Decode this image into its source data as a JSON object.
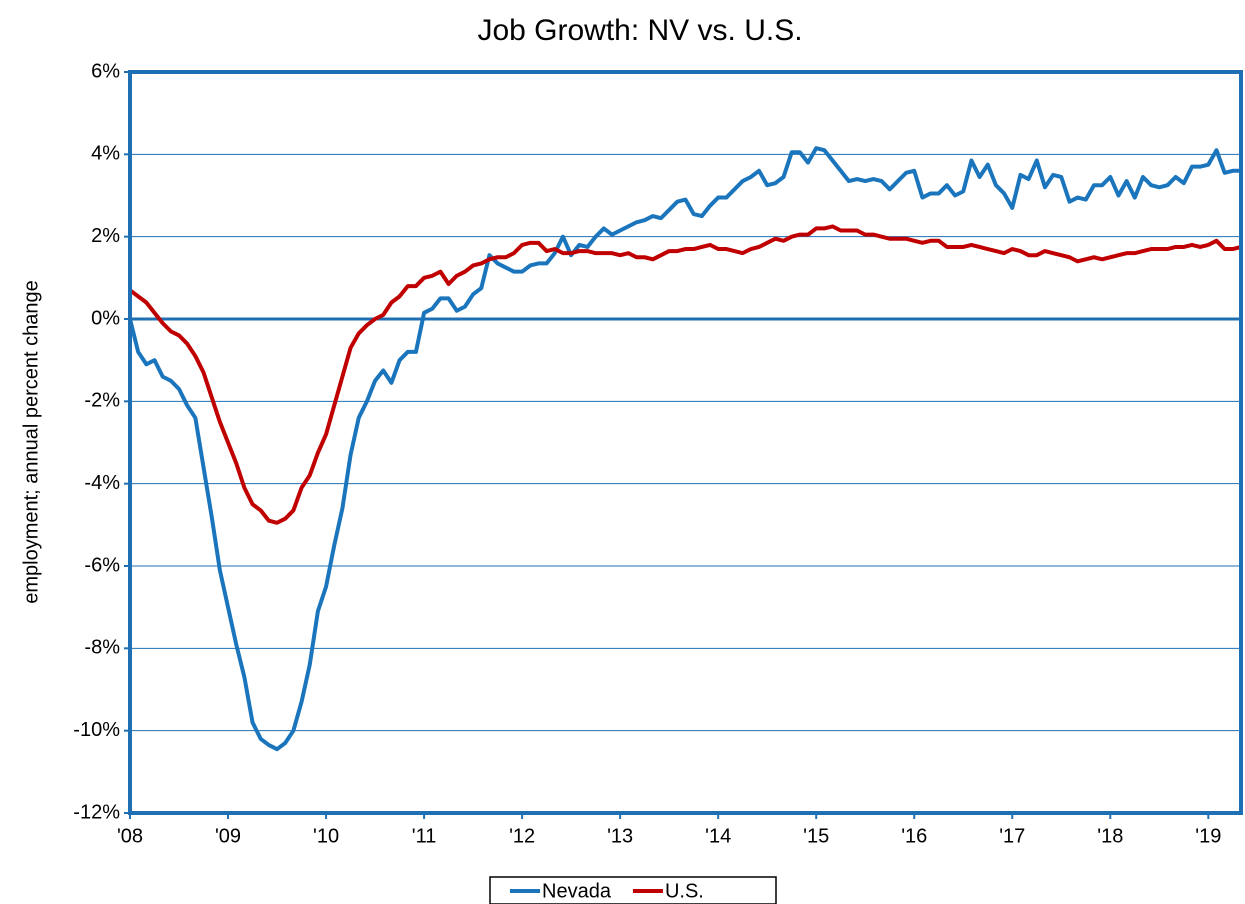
{
  "chart_data": {
    "type": "line",
    "title": "Job Growth:  NV vs. U.S.",
    "y_label": "employment; annual percent change",
    "categories": [
      "'08",
      null,
      null,
      null,
      null,
      null,
      null,
      null,
      null,
      null,
      null,
      null,
      "'09",
      null,
      null,
      null,
      null,
      null,
      null,
      null,
      null,
      null,
      null,
      null,
      "'10",
      null,
      null,
      null,
      null,
      null,
      null,
      null,
      null,
      null,
      null,
      null,
      "'11",
      null,
      null,
      null,
      null,
      null,
      null,
      null,
      null,
      null,
      null,
      null,
      "'12",
      null,
      null,
      null,
      null,
      null,
      null,
      null,
      null,
      null,
      null,
      null,
      "'13",
      null,
      null,
      null,
      null,
      null,
      null,
      null,
      null,
      null,
      null,
      null,
      "'14",
      null,
      null,
      null,
      null,
      null,
      null,
      null,
      null,
      null,
      null,
      null,
      "'15",
      null,
      null,
      null,
      null,
      null,
      null,
      null,
      null,
      null,
      null,
      null,
      "'16",
      null,
      null,
      null,
      null,
      null,
      null,
      null,
      null,
      null,
      null,
      null,
      "'17",
      null,
      null,
      null,
      null,
      null,
      null,
      null,
      null,
      null,
      null,
      null,
      "'18",
      null,
      null,
      null,
      null,
      null,
      null,
      null,
      null,
      null,
      null,
      null,
      "'19",
      null,
      null,
      null,
      null
    ],
    "series": [
      {
        "name": "Nevada",
        "color": "#1a75bc",
        "values": [
          0.0,
          -0.8,
          -1.1,
          -1.0,
          -1.4,
          -1.5,
          -1.7,
          -2.1,
          -2.4,
          -3.6,
          -4.8,
          -6.1,
          -7.0,
          -7.9,
          -8.7,
          -9.8,
          -10.2,
          -10.35,
          -10.45,
          -10.3,
          -10.0,
          -9.3,
          -8.4,
          -7.1,
          -6.5,
          -5.5,
          -4.6,
          -3.3,
          -2.4,
          -2.0,
          -1.5,
          -1.25,
          -1.55,
          -1.0,
          -0.8,
          -0.8,
          0.15,
          0.25,
          0.5,
          0.5,
          0.2,
          0.3,
          0.6,
          0.75,
          1.55,
          1.35,
          1.25,
          1.15,
          1.15,
          1.3,
          1.35,
          1.35,
          1.6,
          2.0,
          1.55,
          1.8,
          1.75,
          2.0,
          2.2,
          2.05,
          2.15,
          2.25,
          2.35,
          2.4,
          2.5,
          2.45,
          2.65,
          2.85,
          2.9,
          2.55,
          2.5,
          2.75,
          2.95,
          2.95,
          3.15,
          3.35,
          3.45,
          3.6,
          3.25,
          3.3,
          3.45,
          4.05,
          4.05,
          3.8,
          4.15,
          4.1,
          3.85,
          3.6,
          3.35,
          3.4,
          3.35,
          3.4,
          3.35,
          3.15,
          3.35,
          3.55,
          3.6,
          2.95,
          3.05,
          3.05,
          3.25,
          3.0,
          3.1,
          3.85,
          3.45,
          3.75,
          3.25,
          3.05,
          2.7,
          3.5,
          3.4,
          3.85,
          3.2,
          3.5,
          3.45,
          2.85,
          2.95,
          2.9,
          3.25,
          3.25,
          3.45,
          3.0,
          3.35,
          2.95,
          3.45,
          3.25,
          3.2,
          3.25,
          3.45,
          3.3,
          3.7,
          3.7,
          3.75,
          4.1,
          3.55,
          3.6,
          3.6
        ]
      },
      {
        "name": "U.S.",
        "color": "#c00000",
        "values": [
          0.7,
          0.55,
          0.4,
          0.15,
          -0.1,
          -0.3,
          -0.4,
          -0.6,
          -0.9,
          -1.3,
          -1.9,
          -2.5,
          -3.0,
          -3.5,
          -4.1,
          -4.5,
          -4.65,
          -4.9,
          -4.95,
          -4.85,
          -4.65,
          -4.1,
          -3.8,
          -3.25,
          -2.8,
          -2.1,
          -1.4,
          -0.7,
          -0.35,
          -0.15,
          0.0,
          0.1,
          0.4,
          0.55,
          0.8,
          0.8,
          1.0,
          1.05,
          1.15,
          0.85,
          1.05,
          1.15,
          1.3,
          1.35,
          1.45,
          1.5,
          1.5,
          1.6,
          1.8,
          1.85,
          1.85,
          1.65,
          1.7,
          1.6,
          1.6,
          1.65,
          1.65,
          1.6,
          1.6,
          1.6,
          1.55,
          1.6,
          1.5,
          1.5,
          1.45,
          1.55,
          1.65,
          1.65,
          1.7,
          1.7,
          1.75,
          1.8,
          1.7,
          1.7,
          1.65,
          1.6,
          1.7,
          1.75,
          1.85,
          1.95,
          1.9,
          2.0,
          2.05,
          2.05,
          2.2,
          2.2,
          2.25,
          2.15,
          2.15,
          2.15,
          2.05,
          2.05,
          2.0,
          1.95,
          1.95,
          1.95,
          1.9,
          1.85,
          1.9,
          1.9,
          1.75,
          1.75,
          1.75,
          1.8,
          1.75,
          1.7,
          1.65,
          1.6,
          1.7,
          1.65,
          1.55,
          1.55,
          1.65,
          1.6,
          1.55,
          1.5,
          1.4,
          1.45,
          1.5,
          1.45,
          1.5,
          1.55,
          1.6,
          1.6,
          1.65,
          1.7,
          1.7,
          1.7,
          1.75,
          1.75,
          1.8,
          1.75,
          1.8,
          1.9,
          1.7,
          1.7,
          1.75
        ]
      }
    ],
    "ylim": [
      -12,
      6
    ],
    "yticks": [
      {
        "value": -12,
        "label": "-12%"
      },
      {
        "value": -10,
        "label": "-10%"
      },
      {
        "value": -8,
        "label": "-8%"
      },
      {
        "value": -6,
        "label": "-6%"
      },
      {
        "value": -4,
        "label": "-4%"
      },
      {
        "value": -2,
        "label": "-2%"
      },
      {
        "value": 0,
        "label": "0%"
      },
      {
        "value": 2,
        "label": "2%"
      },
      {
        "value": 4,
        "label": "4%"
      },
      {
        "value": 6,
        "label": "6%"
      }
    ],
    "grid": true,
    "legend": "bottom",
    "frame_color": "#1f6fb5"
  }
}
